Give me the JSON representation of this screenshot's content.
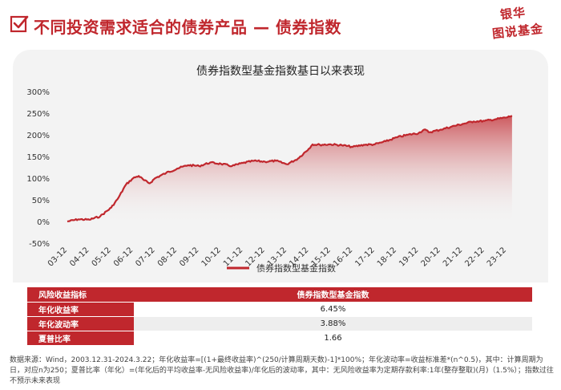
{
  "header": {
    "title": "不同投资需求适合的债券产品 — 债券指数",
    "logo_top": "银华",
    "logo_bottom": "图说基金"
  },
  "colors": {
    "accent": "#c0272d",
    "panel": "#f3f3f3"
  },
  "chart_data": {
    "type": "area",
    "title": "债券指数型基金指数基日以来表现",
    "series": [
      {
        "name": "债券指数型基金指数",
        "color": "#c0272d",
        "points": [
          [
            "03-12",
            0
          ],
          [
            "04-06",
            5
          ],
          [
            "04-12",
            4
          ],
          [
            "05-06",
            12
          ],
          [
            "05-12",
            32
          ],
          [
            "06-04",
            55
          ],
          [
            "06-08",
            85
          ],
          [
            "06-12",
            100
          ],
          [
            "07-03",
            105
          ],
          [
            "07-06",
            95
          ],
          [
            "07-09",
            88
          ],
          [
            "07-12",
            100
          ],
          [
            "08-06",
            112
          ],
          [
            "08-12",
            122
          ],
          [
            "09-06",
            130
          ],
          [
            "09-12",
            128
          ],
          [
            "10-06",
            136
          ],
          [
            "10-12",
            133
          ],
          [
            "11-06",
            128
          ],
          [
            "11-12",
            135
          ],
          [
            "12-06",
            140
          ],
          [
            "12-12",
            138
          ],
          [
            "13-06",
            140
          ],
          [
            "13-12",
            132
          ],
          [
            "14-06",
            145
          ],
          [
            "14-12",
            168
          ],
          [
            "15-02",
            178
          ],
          [
            "15-06",
            177
          ],
          [
            "15-12",
            178
          ],
          [
            "16-06",
            176
          ],
          [
            "16-12",
            172
          ],
          [
            "17-06",
            177
          ],
          [
            "17-12",
            178
          ],
          [
            "18-06",
            185
          ],
          [
            "18-12",
            194
          ],
          [
            "19-06",
            200
          ],
          [
            "19-12",
            204
          ],
          [
            "20-03",
            212
          ],
          [
            "20-06",
            206
          ],
          [
            "20-12",
            212
          ],
          [
            "21-06",
            219
          ],
          [
            "21-12",
            225
          ],
          [
            "22-06",
            231
          ],
          [
            "22-12",
            232
          ],
          [
            "23-06",
            236
          ],
          [
            "23-12",
            240
          ],
          [
            "24-03",
            244
          ]
        ]
      }
    ],
    "x_ticks": [
      "03-12",
      "04-12",
      "05-12",
      "06-12",
      "07-12",
      "08-12",
      "09-12",
      "10-12",
      "11-12",
      "12-12",
      "13-12",
      "14-12",
      "15-12",
      "16-12",
      "17-12",
      "18-12",
      "19-12",
      "20-12",
      "21-12",
      "22-12",
      "23-12"
    ],
    "y_ticks": [
      "300%",
      "250%",
      "200%",
      "150%",
      "100%",
      "50%",
      "0%",
      "-50%"
    ],
    "ylim": [
      -50,
      300
    ],
    "legend_position": "bottom"
  },
  "risk_table": {
    "header": [
      "风险收益指标",
      "债券指数型基金指数"
    ],
    "rows": [
      {
        "label": "年化收益率",
        "value": "6.45%"
      },
      {
        "label": "年化波动率",
        "value": "3.88%"
      },
      {
        "label": "夏普比率",
        "value": "1.66"
      }
    ]
  },
  "footnote": "数据来源：Wind，2003.12.31-2024.3.22；年化收益率=[(1+最终收益率)^(250/计算周期天数)-1]*100%；年化波动率=收益标准差*(n^0.5)，其中：计算周期为日，对应n为250；夏普比率（年化）=(年化后的平均收益率-无风险收益率)/年化后的波动率，其中：无风险收益率为定期存款利率:1年(整存整取)(月)（1.5%）；指数过往不预示未来表现"
}
